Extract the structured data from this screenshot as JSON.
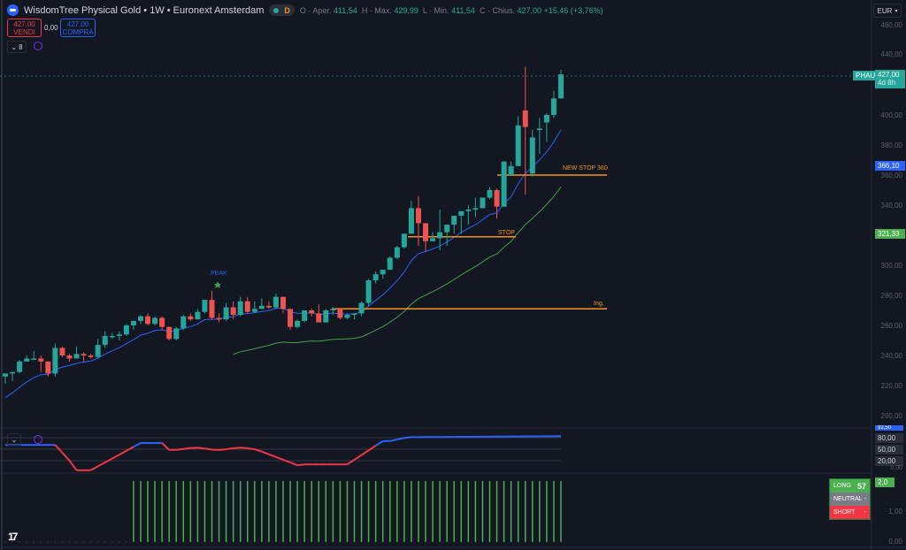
{
  "header": {
    "symbol_title": "WisdomTree Physical Gold • 1W • Euronext Amsterdam",
    "market_status_badge": "D",
    "ohlc": {
      "open_label": "O · Aper.",
      "open": "411,54",
      "high_label": "H · Max.",
      "high": "429,99",
      "low_label": "L · Min.",
      "low": "411,54",
      "close_label": "C · Chius.",
      "close": "427,00",
      "change": "+15,46 (+3,76%)"
    }
  },
  "trade": {
    "sell_price": "427,00",
    "sell_label": "VENDI",
    "spread": "0,00",
    "buy_price": "427,00",
    "buy_label": "COMPRA"
  },
  "indicators_toggle": {
    "count": "8"
  },
  "currency": "EUR",
  "price_axis": {
    "ticks": [
      "460,00",
      "440,00",
      "400,00",
      "380,00",
      "360,00",
      "340,00",
      "300,00",
      "280,00",
      "260,00",
      "240,00",
      "220,00",
      "200,00"
    ],
    "symbol_tag": "PHAU",
    "last_price": "427,00",
    "countdown": "4d 8h",
    "ema_fast_tag": "366,10",
    "ema_slow_tag": "321,33"
  },
  "oscillator_axis": {
    "top_tag": "92,50",
    "levels": [
      "80,00",
      "50,00",
      "20,00",
      "0,00"
    ]
  },
  "signal_axis": {
    "value_tag": "2,0",
    "ticks": [
      "1,00",
      "0,00"
    ]
  },
  "signal_panel": {
    "long_label": "LONG",
    "long_value": "57",
    "neutral_label": "NEUTRAL",
    "neutral_value": "-",
    "short_label": "SHORT",
    "short_value": "-"
  },
  "annotations": {
    "peak": "PEAK",
    "stop": "STOP",
    "new_stop": "NEW STOP 360",
    "entry": "Ing."
  },
  "colors": {
    "up": "#26a69a",
    "down": "#ef5350",
    "ema_fast": "#2962ff",
    "ema_slow": "#43a047",
    "level_line": "#f7931a",
    "background": "#131722"
  },
  "chart_data": {
    "type": "candlestick",
    "title": "WisdomTree Physical Gold • 1W • Euronext Amsterdam",
    "ylabel": "EUR",
    "ylim": [
      195,
      465
    ],
    "horizontal_levels": [
      {
        "label": "NEW STOP 360",
        "value": 360,
        "x_start": 562,
        "x_end": 686
      },
      {
        "label": "STOP",
        "value": 319,
        "x_start": 461,
        "x_end": 583
      },
      {
        "label": "Ing.",
        "value": 271,
        "x_start": 375,
        "x_end": 686
      }
    ],
    "candles": [
      [
        226,
        228,
        221,
        228
      ],
      [
        228,
        229,
        223,
        229
      ],
      [
        229,
        237,
        228,
        236
      ],
      [
        236,
        240,
        236,
        238
      ],
      [
        238,
        243,
        237,
        238
      ],
      [
        238,
        240,
        229,
        236
      ],
      [
        236,
        236,
        226,
        228
      ],
      [
        228,
        248,
        226,
        245
      ],
      [
        245,
        246,
        239,
        240
      ],
      [
        240,
        241,
        236,
        238
      ],
      [
        238,
        246,
        238,
        241
      ],
      [
        241,
        242,
        236,
        240
      ],
      [
        240,
        241,
        238,
        239
      ],
      [
        239,
        251,
        238,
        247
      ],
      [
        247,
        256,
        245,
        253
      ],
      [
        253,
        255,
        251,
        253
      ],
      [
        253,
        256,
        250,
        254
      ],
      [
        254,
        261,
        253,
        260
      ],
      [
        260,
        263,
        257,
        263
      ],
      [
        263,
        267,
        261,
        266
      ],
      [
        266,
        268,
        260,
        261
      ],
      [
        261,
        266,
        260,
        265
      ],
      [
        265,
        266,
        257,
        259
      ],
      [
        259,
        259,
        250,
        251
      ],
      [
        251,
        259,
        250,
        258
      ],
      [
        258,
        267,
        257,
        266
      ],
      [
        266,
        268,
        263,
        264
      ],
      [
        264,
        271,
        264,
        269
      ],
      [
        269,
        276,
        268,
        277
      ],
      [
        277,
        283,
        264,
        265
      ],
      [
        265,
        268,
        262,
        264
      ],
      [
        264,
        275,
        263,
        272
      ],
      [
        272,
        276,
        264,
        267
      ],
      [
        267,
        279,
        266,
        276
      ],
      [
        276,
        279,
        268,
        269
      ],
      [
        269,
        276,
        268,
        271
      ],
      [
        271,
        278,
        271,
        273
      ],
      [
        273,
        276,
        271,
        272
      ],
      [
        272,
        281,
        271,
        279
      ],
      [
        279,
        279,
        268,
        271
      ],
      [
        271,
        271,
        257,
        259
      ],
      [
        259,
        264,
        258,
        263
      ],
      [
        263,
        270,
        262,
        270
      ],
      [
        270,
        271,
        266,
        268
      ],
      [
        268,
        274,
        263,
        262
      ],
      [
        262,
        271,
        262,
        270
      ],
      [
        270,
        272,
        267,
        271
      ],
      [
        271,
        271,
        264,
        265
      ],
      [
        265,
        268,
        264,
        267
      ],
      [
        267,
        268,
        264,
        268
      ],
      [
        268,
        276,
        266,
        275
      ],
      [
        275,
        291,
        273,
        290
      ],
      [
        290,
        296,
        288,
        294
      ],
      [
        294,
        297,
        291,
        297
      ],
      [
        297,
        306,
        297,
        305
      ],
      [
        305,
        313,
        304,
        312
      ],
      [
        312,
        320,
        311,
        321
      ],
      [
        321,
        343,
        321,
        338
      ],
      [
        338,
        346,
        313,
        328
      ],
      [
        328,
        319,
        309,
        316
      ],
      [
        316,
        322,
        316,
        318
      ],
      [
        318,
        337,
        310,
        322
      ],
      [
        322,
        327,
        313,
        327
      ],
      [
        327,
        331,
        321,
        333
      ],
      [
        333,
        336,
        321,
        336
      ],
      [
        336,
        340,
        327,
        337
      ],
      [
        337,
        345,
        332,
        338
      ],
      [
        338,
        345,
        339,
        345
      ],
      [
        345,
        352,
        344,
        350
      ],
      [
        350,
        351,
        331,
        339
      ],
      [
        339,
        360,
        339,
        369
      ],
      [
        360,
        369,
        363,
        366
      ],
      [
        366,
        399,
        366,
        393
      ],
      [
        403,
        432,
        347,
        392
      ],
      [
        361,
        390,
        359,
        385
      ],
      [
        390,
        398,
        374,
        391
      ],
      [
        395,
        401,
        382,
        400
      ],
      [
        400,
        416,
        398,
        411
      ],
      [
        411,
        430,
        411,
        427
      ]
    ],
    "ema_fast": {
      "name": "EMA fast",
      "last": 366.1
    },
    "ema_slow": {
      "name": "EMA slow",
      "last": 321.33
    },
    "oscillator": {
      "range": [
        0,
        100
      ],
      "levels": [
        20,
        50,
        80
      ],
      "last": 92.5
    },
    "signal_histogram": {
      "value": 2.0,
      "long_count": 57
    }
  }
}
